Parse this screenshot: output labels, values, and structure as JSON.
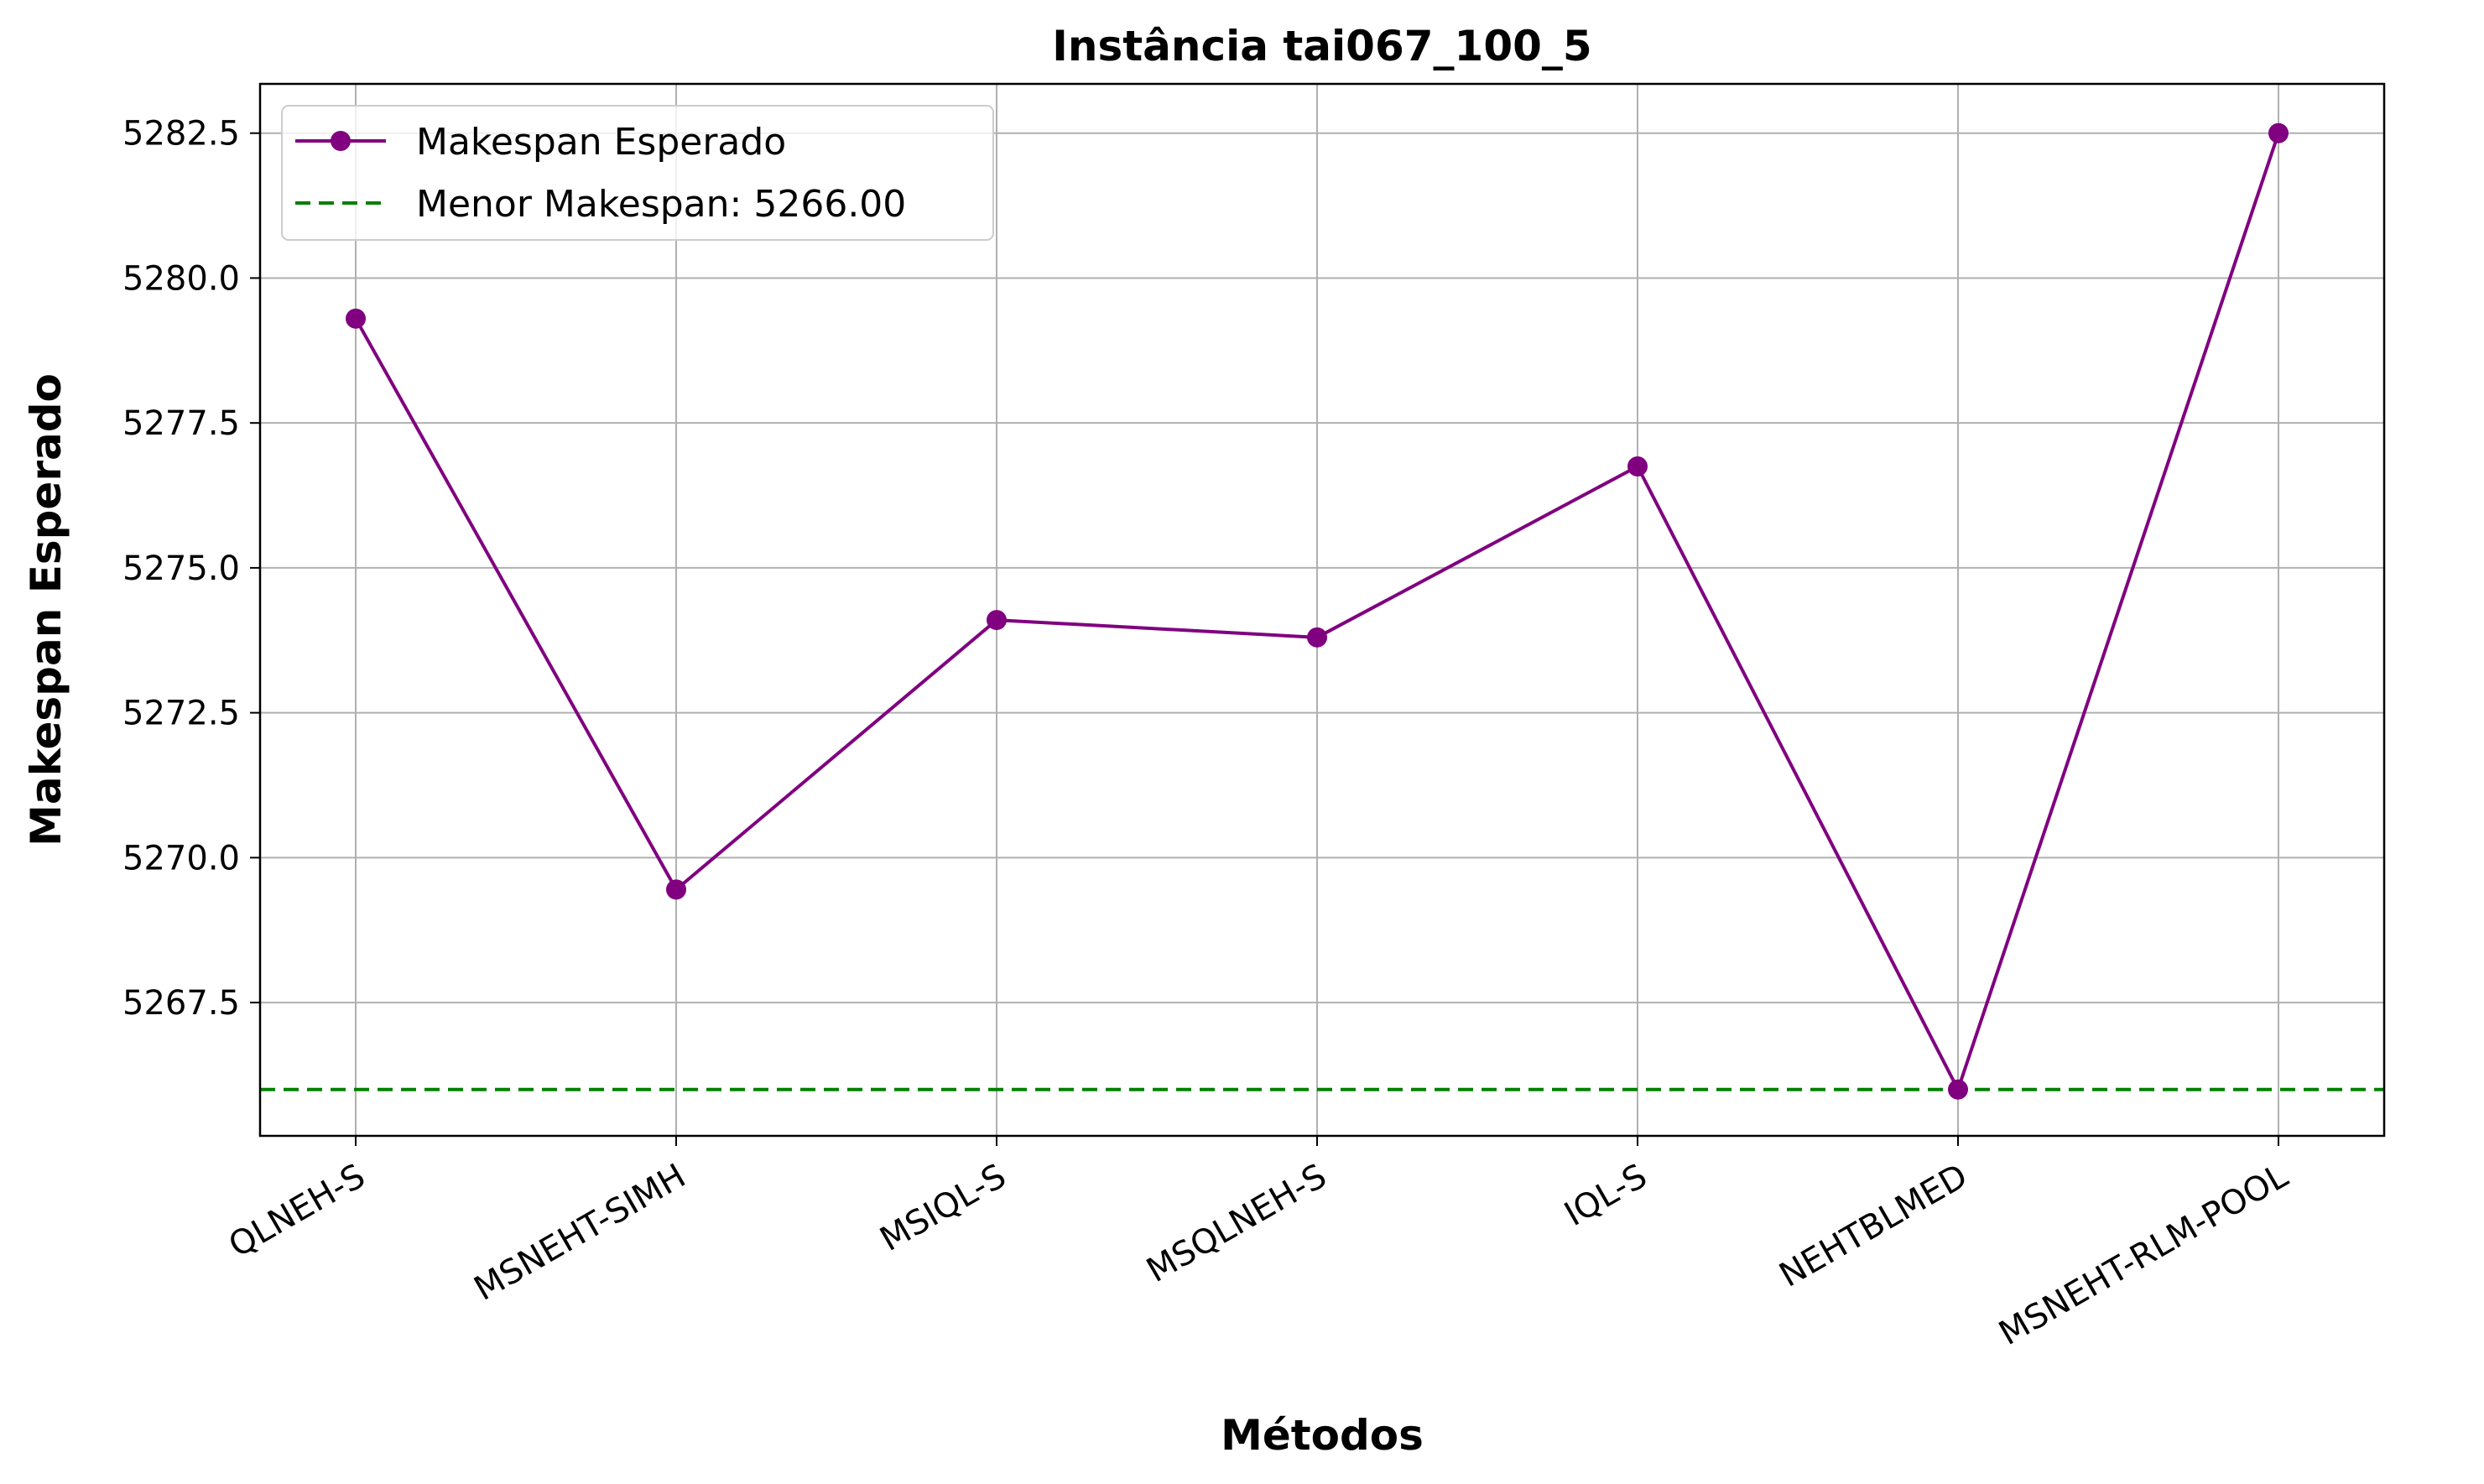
{
  "chart_data": {
    "type": "line",
    "title": "Instância tai067_100_5",
    "xlabel": "Métodos",
    "ylabel": "Makespan Esperado",
    "categories": [
      "QLNEH-S",
      "MSNEHT-SIMH",
      "MSIQL-S",
      "MSQLNEH-S",
      "IQL-S",
      "NEHTBLMED",
      "MSNEHT-RLM-POOL"
    ],
    "series": [
      {
        "name": "Makespan Esperado",
        "values": [
          5279.3,
          5269.45,
          5274.1,
          5273.8,
          5276.75,
          5266.0,
          5282.5
        ],
        "color": "#800080",
        "marker": "circle"
      }
    ],
    "reference_line": {
      "label": "Menor Makespan: 5266.00",
      "value": 5266.0,
      "color": "#008000",
      "style": "dashed"
    },
    "yticks": [
      "5267.5",
      "5270.0",
      "5272.5",
      "5275.0",
      "5277.5",
      "5280.0",
      "5282.5"
    ],
    "ylim": [
      5265.2,
      5283.35
    ],
    "grid": true,
    "legend_position": "top-left",
    "xtick_rotation": 30
  }
}
